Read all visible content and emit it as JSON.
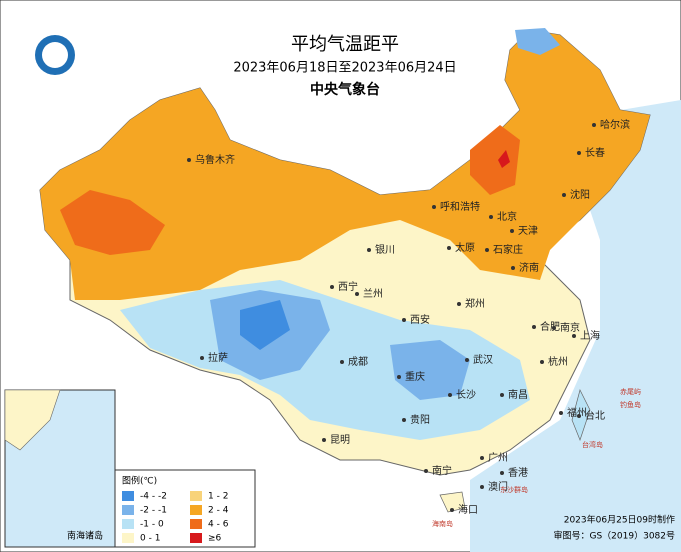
{
  "header": {
    "title": "平均气温距平",
    "subtitle": "2023年06月18日至2023年06月24日",
    "agency": "中央气象台"
  },
  "cities": [
    {
      "name": "乌鲁木齐"
    },
    {
      "name": "哈尔滨"
    },
    {
      "name": "长春"
    },
    {
      "name": "沈阳"
    },
    {
      "name": "呼和浩特"
    },
    {
      "name": "北京"
    },
    {
      "name": "天津"
    },
    {
      "name": "银川"
    },
    {
      "name": "太原"
    },
    {
      "name": "石家庄"
    },
    {
      "name": "济南"
    },
    {
      "name": "西宁"
    },
    {
      "name": "兰州"
    },
    {
      "name": "郑州"
    },
    {
      "name": "西安"
    },
    {
      "name": "合肥"
    },
    {
      "name": "南京"
    },
    {
      "name": "上海"
    },
    {
      "name": "拉萨"
    },
    {
      "name": "成都"
    },
    {
      "name": "重庆"
    },
    {
      "name": "武汉"
    },
    {
      "name": "杭州"
    },
    {
      "name": "长沙"
    },
    {
      "name": "南昌"
    },
    {
      "name": "贵阳"
    },
    {
      "name": "福州"
    },
    {
      "name": "台北"
    },
    {
      "name": "昆明"
    },
    {
      "name": "南宁"
    },
    {
      "name": "广州"
    },
    {
      "name": "香港"
    },
    {
      "name": "澳门"
    },
    {
      "name": "海口"
    }
  ],
  "islands": [
    {
      "name": "钓鱼岛"
    },
    {
      "name": "赤尾屿"
    },
    {
      "name": "台湾岛"
    },
    {
      "name": "东沙群岛"
    },
    {
      "name": "海南岛"
    }
  ],
  "inset": {
    "label": "南海诸岛"
  },
  "legend": {
    "title": "图例(℃)",
    "items": [
      {
        "label": "-4 - -2",
        "color": "#3f8de0"
      },
      {
        "label": "1 - 2",
        "color": "#f8d37a"
      },
      {
        "label": "-2 - -1",
        "color": "#7ab3ea"
      },
      {
        "label": "2 - 4",
        "color": "#f5a623"
      },
      {
        "label": "-1 - 0",
        "color": "#b8e2f5"
      },
      {
        "label": "4 - 6",
        "color": "#ef6c1a"
      },
      {
        "label": "0 - 1",
        "color": "#fdf5c8"
      },
      {
        "label": "≥6",
        "color": "#d7191c"
      }
    ]
  },
  "footer": {
    "made": "2023年06月25日09时制作",
    "review": "审图号：GS（2019）3082号"
  }
}
